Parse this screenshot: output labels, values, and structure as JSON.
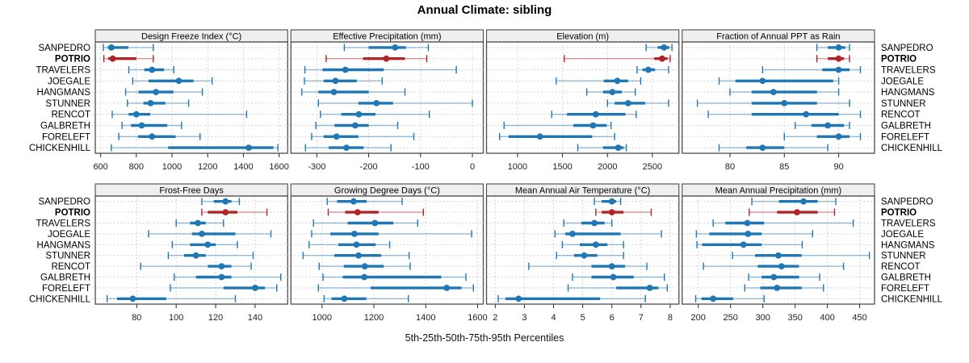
{
  "title": "Annual Climate: sibling",
  "xlabel": "5th-25th-50th-75th-95th Percentiles",
  "colors": {
    "series": "#1f77b4",
    "highlight": "#b22428",
    "strip_bg": "#efefef",
    "border": "#4d4d4d",
    "grid": "#c8c8c8",
    "tick": "#222222",
    "text": "#000000"
  },
  "sites": [
    "SANPEDRO",
    "POTRIO",
    "TRAVELERS",
    "JOEGALE",
    "HANGMANS",
    "STUNNER",
    "RENCOT",
    "GALBRETH",
    "FORELEFT",
    "CHICKENHILL"
  ],
  "highlight_site": "POTRIO",
  "percentile_labels": [
    "5th",
    "25th",
    "50th",
    "75th",
    "95th"
  ],
  "chart_data": {
    "type": "scatter",
    "subtype": "percentile-interval-trellis",
    "grid": "dotted",
    "rows_of_panels": 2,
    "cols_of_panels": 4,
    "panels": [
      {
        "title": "Design Freeze Index (°C)",
        "ticks": [
          600,
          800,
          1000,
          1200,
          1400,
          1600
        ],
        "xlim": [
          570,
          1648
        ],
        "values": [
          [
            615,
            640,
            660,
            755,
            895
          ],
          [
            618,
            642,
            668,
            800,
            895
          ],
          [
            758,
            845,
            888,
            955,
            1010
          ],
          [
            780,
            868,
            1038,
            1120,
            1225
          ],
          [
            740,
            812,
            910,
            1008,
            1170
          ],
          [
            750,
            840,
            880,
            963,
            1093
          ],
          [
            665,
            757,
            800,
            878,
            1418
          ],
          [
            720,
            770,
            830,
            973,
            1053
          ],
          [
            702,
            810,
            888,
            1020,
            1157
          ],
          [
            660,
            978,
            1430,
            1568,
            1593
          ]
        ]
      },
      {
        "title": "Effective Precipitation (mm)",
        "ticks": [
          -300,
          -200,
          -100,
          0
        ],
        "xlim": [
          -350,
          21
        ],
        "values": [
          [
            -247,
            -200,
            -149,
            -128,
            -85
          ],
          [
            -282,
            -211,
            -166,
            -130,
            -88
          ],
          [
            -323,
            -289,
            -245,
            -171,
            -31
          ],
          [
            -324,
            -287,
            -264,
            -223,
            -174
          ],
          [
            -329,
            -297,
            -267,
            -200,
            -130
          ],
          [
            -297,
            -220,
            -185,
            -153,
            0
          ],
          [
            -293,
            -253,
            -219,
            -187,
            -83
          ],
          [
            -302,
            -266,
            -226,
            -200,
            -144
          ],
          [
            -310,
            -287,
            -262,
            -220,
            -113
          ],
          [
            -322,
            -277,
            -243,
            -210,
            -157
          ]
        ]
      },
      {
        "title": "Elevation (m)",
        "ticks": [
          1000,
          1500,
          2000,
          2500
        ],
        "xlim": [
          655,
          2795
        ],
        "values": [
          [
            2430,
            2558,
            2630,
            2688,
            2718
          ],
          [
            1520,
            2520,
            2608,
            2668,
            2698
          ],
          [
            2330,
            2390,
            2455,
            2530,
            2680
          ],
          [
            1430,
            1960,
            2110,
            2230,
            2370
          ],
          [
            1770,
            1950,
            2055,
            2160,
            2310
          ],
          [
            2000,
            2080,
            2230,
            2420,
            2680
          ],
          [
            1380,
            1550,
            1870,
            2200,
            2320
          ],
          [
            850,
            1620,
            1840,
            1990,
            2040
          ],
          [
            800,
            900,
            1250,
            1830,
            2080
          ],
          [
            1670,
            1950,
            2120,
            2180,
            2210
          ]
        ]
      },
      {
        "title": "Fraction of Annual PPT as Rain",
        "ticks": [
          80,
          85,
          90
        ],
        "xlim": [
          75.6,
          93.3
        ],
        "values": [
          [
            88,
            89,
            90,
            90.6,
            91
          ],
          [
            88,
            89,
            90,
            90.5,
            91
          ],
          [
            83,
            88.5,
            90,
            91,
            92
          ],
          [
            79,
            80.5,
            83,
            89.5,
            90
          ],
          [
            80,
            82,
            84,
            88,
            90
          ],
          [
            77,
            82,
            85,
            88,
            91
          ],
          [
            78,
            82,
            87,
            90,
            92
          ],
          [
            86,
            87.5,
            89,
            90.5,
            91
          ],
          [
            85,
            88,
            90,
            91,
            92
          ],
          [
            79,
            81.5,
            83,
            85,
            89
          ]
        ]
      },
      {
        "title": "Frost-Free Days",
        "ticks": [
          80,
          100,
          120,
          140
        ],
        "xlim": [
          59,
          156.5
        ],
        "values": [
          [
            113,
            119,
            125,
            128,
            132
          ],
          [
            113,
            116,
            125,
            131,
            146
          ],
          [
            100,
            107,
            111,
            115,
            124
          ],
          [
            86,
            108,
            113,
            130,
            148
          ],
          [
            98,
            107,
            116,
            120,
            131
          ],
          [
            96,
            104,
            110,
            115,
            139
          ],
          [
            82,
            116,
            123,
            128,
            138
          ],
          [
            99,
            110,
            123,
            128,
            153
          ],
          [
            97,
            124,
            140,
            145,
            151
          ],
          [
            65,
            70,
            78,
            95,
            130
          ]
        ]
      },
      {
        "title": "Growing Degree Days (°C)",
        "ticks": [
          1000,
          1200,
          1400,
          1600
        ],
        "xlim": [
          880,
          1622
        ],
        "values": [
          [
            1020,
            1058,
            1122,
            1172,
            1309
          ],
          [
            1024,
            1089,
            1137,
            1218,
            1391
          ],
          [
            967,
            1099,
            1204,
            1275,
            1369
          ],
          [
            960,
            1032,
            1125,
            1218,
            1577
          ],
          [
            950,
            1063,
            1133,
            1207,
            1261
          ],
          [
            927,
            1047,
            1141,
            1228,
            1336
          ],
          [
            989,
            1084,
            1165,
            1238,
            1340
          ],
          [
            1004,
            1080,
            1163,
            1460,
            1555
          ],
          [
            986,
            1187,
            1481,
            1538,
            1584
          ],
          [
            1008,
            1037,
            1086,
            1171,
            1333
          ]
        ]
      },
      {
        "title": "Mean Annual Air Temperature (°C)",
        "ticks": [
          2,
          3,
          4,
          5,
          6,
          7,
          8
        ],
        "xlim": [
          1.7,
          8.3
        ],
        "values": [
          [
            5.4,
            5.65,
            6.0,
            6.15,
            6.3
          ],
          [
            5.45,
            5.65,
            6.0,
            6.4,
            7.35
          ],
          [
            4.35,
            4.95,
            5.4,
            5.75,
            6.0
          ],
          [
            4.05,
            4.4,
            4.65,
            6.3,
            7.7
          ],
          [
            4.3,
            4.9,
            5.45,
            5.85,
            6.4
          ],
          [
            4.1,
            4.7,
            5.05,
            5.5,
            6.4
          ],
          [
            3.15,
            5.3,
            6.0,
            6.45,
            7.2
          ],
          [
            4.65,
            5.3,
            6.05,
            6.75,
            7.8
          ],
          [
            4.5,
            6.15,
            7.3,
            7.6,
            7.9
          ],
          [
            2.1,
            2.35,
            2.8,
            5.6,
            7.15
          ]
        ]
      },
      {
        "title": "Mean Annual Precipitation (mm)",
        "ticks": [
          200,
          250,
          300,
          350,
          400,
          450
        ],
        "xlim": [
          175,
          473
        ],
        "values": [
          [
            283,
            325,
            363,
            385,
            413
          ],
          [
            279,
            322,
            353,
            385,
            411
          ],
          [
            223,
            242,
            276,
            302,
            440
          ],
          [
            197,
            217,
            277,
            298,
            377
          ],
          [
            198,
            206,
            270,
            298,
            361
          ],
          [
            253,
            288,
            324,
            360,
            465
          ],
          [
            208,
            292,
            329,
            356,
            425
          ],
          [
            278,
            298,
            317,
            356,
            388
          ],
          [
            272,
            296,
            322,
            360,
            394
          ],
          [
            196,
            205,
            223,
            254,
            302
          ]
        ]
      }
    ]
  }
}
